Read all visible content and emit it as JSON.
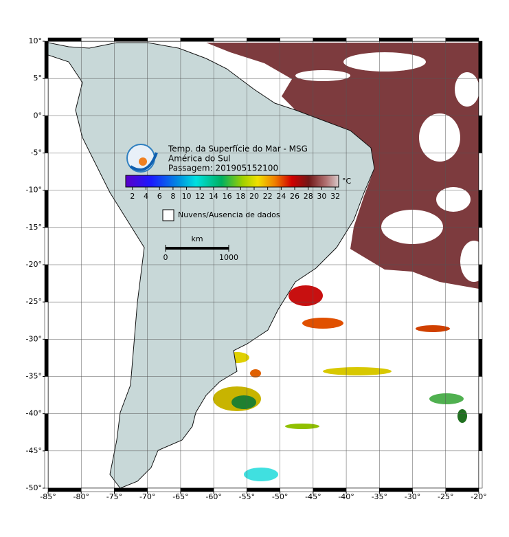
{
  "map": {
    "title_lines": [
      "Temp. da Superfície do Mar - MSG",
      "América do Sul",
      "Passagem: 201905152100"
    ],
    "colorbar": {
      "unit": "°C",
      "clim": [
        1,
        32.5
      ],
      "ticks": [
        2,
        4,
        6,
        8,
        10,
        12,
        14,
        16,
        18,
        20,
        22,
        24,
        26,
        28,
        30,
        32
      ]
    },
    "legend": "Nuvens/Ausencia de dados",
    "scale_bar": {
      "unit": "km",
      "ticks": [
        0,
        1000
      ]
    },
    "xlim": [
      -85,
      -20
    ],
    "ylim": [
      -50,
      10
    ],
    "xticks": [
      {
        "value": -85,
        "label": "-85°"
      },
      {
        "value": -80,
        "label": "-80°"
      },
      {
        "value": -75,
        "label": "-75°"
      },
      {
        "value": -70,
        "label": "-70°"
      },
      {
        "value": -65,
        "label": "-65°"
      },
      {
        "value": -60,
        "label": "-60°"
      },
      {
        "value": -55,
        "label": "-55°"
      },
      {
        "value": -50,
        "label": "-50°"
      },
      {
        "value": -45,
        "label": "-45°"
      },
      {
        "value": -40,
        "label": "-40°"
      },
      {
        "value": -35,
        "label": "-35°"
      },
      {
        "value": -30,
        "label": "-30°"
      },
      {
        "value": -25,
        "label": "-25°"
      },
      {
        "value": -20,
        "label": "-20°"
      }
    ],
    "yticks": [
      {
        "value": 10,
        "label": "10°"
      },
      {
        "value": 5,
        "label": "5°"
      },
      {
        "value": 0,
        "label": "0°"
      },
      {
        "value": -5,
        "label": "-5°"
      },
      {
        "value": -10,
        "label": "-10°"
      },
      {
        "value": -15,
        "label": "-15°"
      },
      {
        "value": -20,
        "label": "-20°"
      },
      {
        "value": -25,
        "label": "-25°"
      },
      {
        "value": -30,
        "label": "-30°"
      },
      {
        "value": -35,
        "label": "-35°"
      },
      {
        "value": -40,
        "label": "-40°"
      },
      {
        "value": -45,
        "label": "-45°"
      },
      {
        "value": -50,
        "label": "-50°"
      }
    ],
    "grid": true
  }
}
